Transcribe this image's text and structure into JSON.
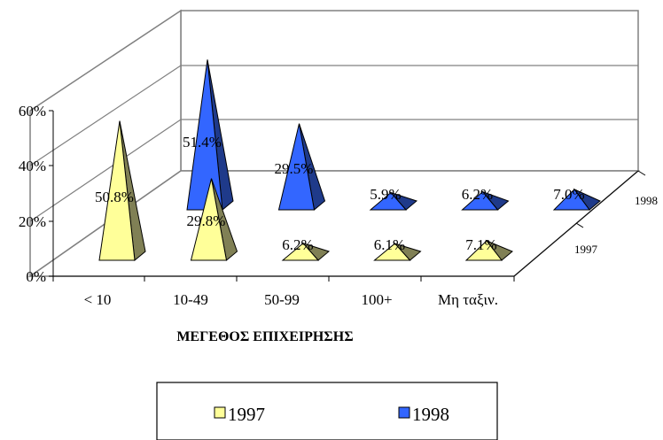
{
  "chart_data": {
    "type": "bar",
    "style": "3d-pyramid",
    "xlabel": "ΜΕΓΕΘΟΣ ΕΠΙΧΕΙΡΗΣΗΣ",
    "categories": [
      "< 10",
      "10-49",
      "50-99",
      "100+",
      "Μη ταξιν."
    ],
    "y_ticks": [
      "0%",
      "20%",
      "40%",
      "60%"
    ],
    "ylim": [
      0,
      80
    ],
    "grid": true,
    "legend_position": "bottom",
    "series": [
      {
        "name": "1997",
        "depth_label": "1997",
        "color": "#ffff99",
        "side_color": "#808055",
        "values": [
          50.8,
          29.8,
          6.2,
          6.1,
          7.1
        ],
        "labels": [
          "50.8%",
          "29.8%",
          "6.2%",
          "6.1%",
          "7.1%"
        ]
      },
      {
        "name": "1998",
        "depth_label": "1998",
        "color": "#3366ff",
        "side_color": "#1f3a8a",
        "values": [
          51.4,
          29.5,
          5.9,
          6.2,
          7.0
        ],
        "labels": [
          "51.4%",
          "29.5%",
          "5.9%",
          "6.2%",
          "7.0%"
        ]
      }
    ]
  }
}
